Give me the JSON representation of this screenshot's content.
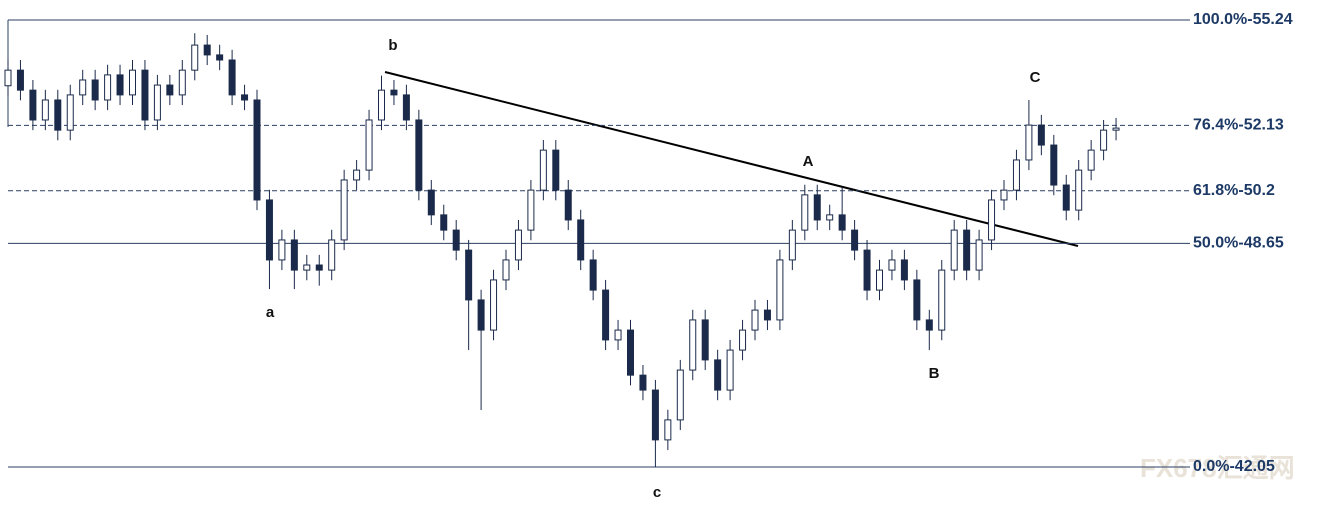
{
  "chart_data": {
    "type": "candlestick",
    "ylim": [
      42.05,
      55.24
    ],
    "levels": [
      {
        "label": "100.0%-55.24",
        "value": 55.24,
        "style": "solid"
      },
      {
        "label": "76.4%-52.13",
        "value": 52.13,
        "style": "dashed"
      },
      {
        "label": "61.8%-50.2",
        "value": 50.2,
        "style": "dashed"
      },
      {
        "label": "50.0%-48.65",
        "value": 48.65,
        "style": "solid"
      },
      {
        "label": "0.0%-42.05",
        "value": 42.05,
        "style": "solid"
      }
    ],
    "wave_labels": [
      "a",
      "b",
      "c",
      "A",
      "B",
      "C"
    ],
    "watermark": "FX678汇通网",
    "color": "#1b2a4a",
    "open": [
      53.3,
      53.76,
      53.17,
      52.29,
      52.88,
      51.99,
      53.03,
      53.47,
      52.88,
      53.62,
      53.03,
      53.76,
      52.29,
      53.32,
      53.03,
      53.76,
      54.5,
      54.21,
      54.06,
      53.03,
      52.88,
      49.93,
      48.16,
      48.75,
      47.86,
      48.01,
      47.86,
      48.75,
      50.52,
      50.81,
      52.29,
      53.17,
      53.03,
      52.29,
      50.22,
      49.49,
      49.04,
      48.45,
      46.98,
      46.09,
      47.57,
      48.16,
      49.04,
      50.22,
      51.4,
      50.22,
      49.34,
      48.16,
      47.27,
      45.8,
      46.09,
      44.76,
      44.32,
      42.85,
      43.44,
      44.91,
      46.39,
      45.21,
      44.32,
      45.5,
      46.09,
      46.68,
      46.39,
      48.16,
      49.04,
      50.08,
      49.34,
      49.49,
      49.04,
      48.45,
      47.27,
      47.86,
      48.16,
      47.57,
      46.39,
      46.09,
      47.86,
      49.04,
      47.86,
      48.75,
      49.93,
      50.22,
      51.11,
      52.14,
      51.55,
      50.37,
      49.63,
      50.81,
      51.4,
      51.99
    ],
    "high": [
      54.06,
      54.06,
      53.47,
      53.18,
      53.18,
      53.33,
      53.77,
      53.77,
      53.92,
      53.92,
      54.06,
      54.06,
      53.62,
      53.62,
      54.06,
      54.85,
      54.8,
      54.51,
      54.36,
      53.33,
      53.18,
      50.23,
      49.05,
      49.05,
      48.31,
      48.31,
      49.05,
      50.82,
      51.11,
      52.59,
      53.6,
      53.47,
      53.33,
      52.59,
      50.52,
      49.79,
      49.34,
      48.75,
      47.28,
      47.87,
      48.46,
      49.34,
      50.52,
      51.7,
      51.7,
      50.52,
      49.64,
      48.46,
      47.57,
      46.39,
      46.39,
      45.06,
      44.62,
      43.74,
      45.21,
      46.69,
      46.69,
      45.51,
      45.8,
      46.39,
      46.98,
      46.98,
      48.46,
      49.34,
      50.38,
      50.38,
      49.79,
      50.3,
      49.34,
      48.75,
      48.16,
      48.46,
      48.46,
      47.87,
      46.69,
      48.16,
      49.34,
      49.34,
      49.05,
      50.23,
      50.52,
      51.41,
      52.88,
      52.44,
      51.85,
      50.67,
      51.11,
      51.7,
      52.29,
      52.35
    ],
    "low": [
      53.0,
      52.87,
      51.99,
      51.99,
      51.69,
      51.69,
      52.73,
      52.58,
      52.58,
      52.73,
      52.73,
      51.99,
      51.99,
      52.73,
      52.73,
      53.46,
      53.91,
      53.76,
      52.73,
      52.58,
      49.63,
      47.3,
      47.86,
      47.3,
      47.56,
      47.4,
      47.56,
      48.45,
      50.22,
      50.51,
      51.99,
      52.73,
      51.99,
      49.92,
      49.19,
      48.74,
      48.15,
      45.5,
      43.73,
      45.79,
      47.27,
      47.86,
      48.74,
      49.92,
      49.92,
      49.04,
      47.86,
      46.97,
      45.5,
      45.5,
      44.46,
      44.02,
      42.05,
      42.55,
      43.14,
      44.61,
      44.91,
      44.02,
      44.02,
      45.2,
      45.79,
      46.09,
      46.09,
      47.86,
      48.74,
      49.04,
      49.04,
      48.74,
      48.15,
      46.97,
      46.97,
      47.56,
      47.27,
      46.09,
      45.5,
      45.79,
      47.56,
      47.56,
      47.56,
      48.45,
      49.63,
      49.92,
      50.81,
      51.25,
      50.07,
      49.33,
      49.33,
      50.51,
      51.1,
      51.69
    ],
    "close": [
      53.76,
      53.17,
      52.29,
      52.88,
      51.99,
      53.03,
      53.47,
      52.88,
      53.62,
      53.03,
      53.76,
      52.29,
      53.32,
      53.03,
      53.76,
      54.5,
      54.21,
      54.06,
      53.03,
      52.88,
      49.93,
      48.16,
      48.75,
      47.86,
      48.01,
      47.86,
      48.75,
      50.52,
      50.81,
      52.29,
      53.17,
      53.03,
      52.29,
      50.22,
      49.49,
      49.04,
      48.45,
      46.98,
      46.09,
      47.57,
      48.16,
      49.04,
      50.22,
      51.4,
      50.22,
      49.34,
      48.16,
      47.27,
      45.8,
      46.09,
      44.76,
      44.32,
      42.85,
      43.44,
      44.91,
      46.39,
      45.21,
      44.32,
      45.5,
      46.09,
      46.68,
      46.39,
      48.16,
      49.04,
      50.08,
      49.34,
      49.49,
      49.04,
      48.45,
      47.27,
      47.86,
      48.16,
      47.57,
      46.39,
      46.09,
      47.86,
      49.04,
      47.86,
      48.75,
      49.93,
      50.22,
      51.11,
      52.14,
      51.55,
      50.37,
      49.63,
      50.81,
      51.4,
      51.99,
      52.05
    ]
  }
}
